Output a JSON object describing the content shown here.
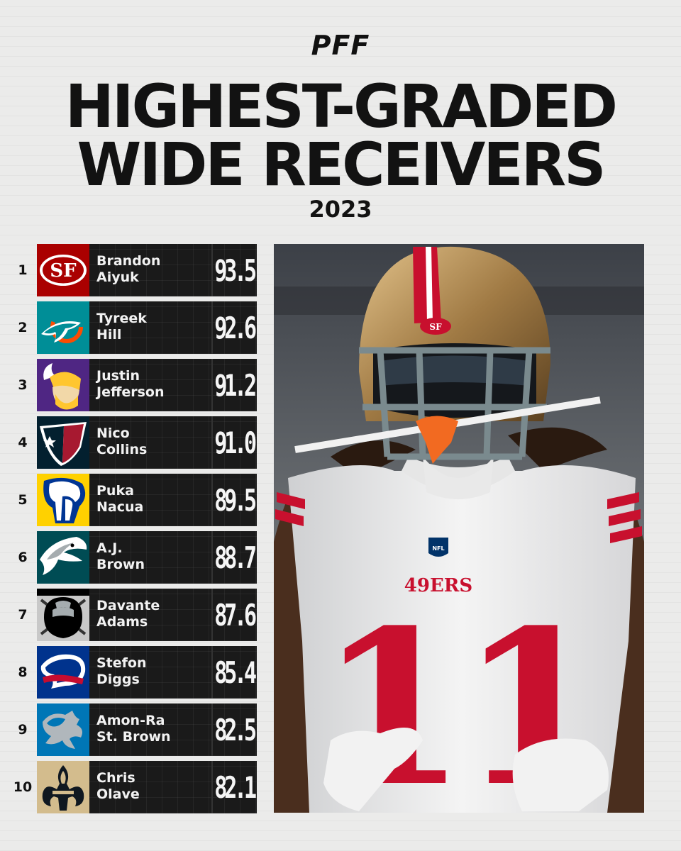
{
  "brand": {
    "logo": "PFF"
  },
  "header": {
    "title_line1": "HIGHEST-GRADED",
    "title_line2": "WIDE RECEIVERS",
    "year": "2023"
  },
  "players": [
    {
      "rank": "1",
      "first": "Brandon",
      "last": "Aiyuk",
      "grade": "93.5",
      "team_icon": "49ers-logo-icon"
    },
    {
      "rank": "2",
      "first": "Tyreek",
      "last": "Hill",
      "grade": "92.6",
      "team_icon": "dolphins-logo-icon"
    },
    {
      "rank": "3",
      "first": "Justin",
      "last": "Jefferson",
      "grade": "91.2",
      "team_icon": "vikings-logo-icon"
    },
    {
      "rank": "4",
      "first": "Nico",
      "last": "Collins",
      "grade": "91.0",
      "team_icon": "texans-logo-icon"
    },
    {
      "rank": "5",
      "first": "Puka",
      "last": "Nacua",
      "grade": "89.5",
      "team_icon": "rams-logo-icon"
    },
    {
      "rank": "6",
      "first": "A.J.",
      "last": "Brown",
      "grade": "88.7",
      "team_icon": "eagles-logo-icon"
    },
    {
      "rank": "7",
      "first": "Davante",
      "last": "Adams",
      "grade": "87.6",
      "team_icon": "raiders-logo-icon"
    },
    {
      "rank": "8",
      "first": "Stefon",
      "last": "Diggs",
      "grade": "85.4",
      "team_icon": "bills-logo-icon"
    },
    {
      "rank": "9",
      "first": "Amon-Ra",
      "last": "St. Brown",
      "grade": "82.5",
      "team_icon": "lions-logo-icon"
    },
    {
      "rank": "10",
      "first": "Chris",
      "last": "Olave",
      "grade": "82.1",
      "team_icon": "saints-logo-icon"
    }
  ],
  "photo": {
    "jersey_number": "11",
    "jersey_wordmark": "49ERS",
    "helmet_logo": "SF",
    "nfl_shield": "NFL"
  },
  "colors": {
    "background": "#ebebea",
    "card": "#1a1a1a",
    "niners_red": "#c8102e",
    "niners_gold": "#b3995d"
  }
}
